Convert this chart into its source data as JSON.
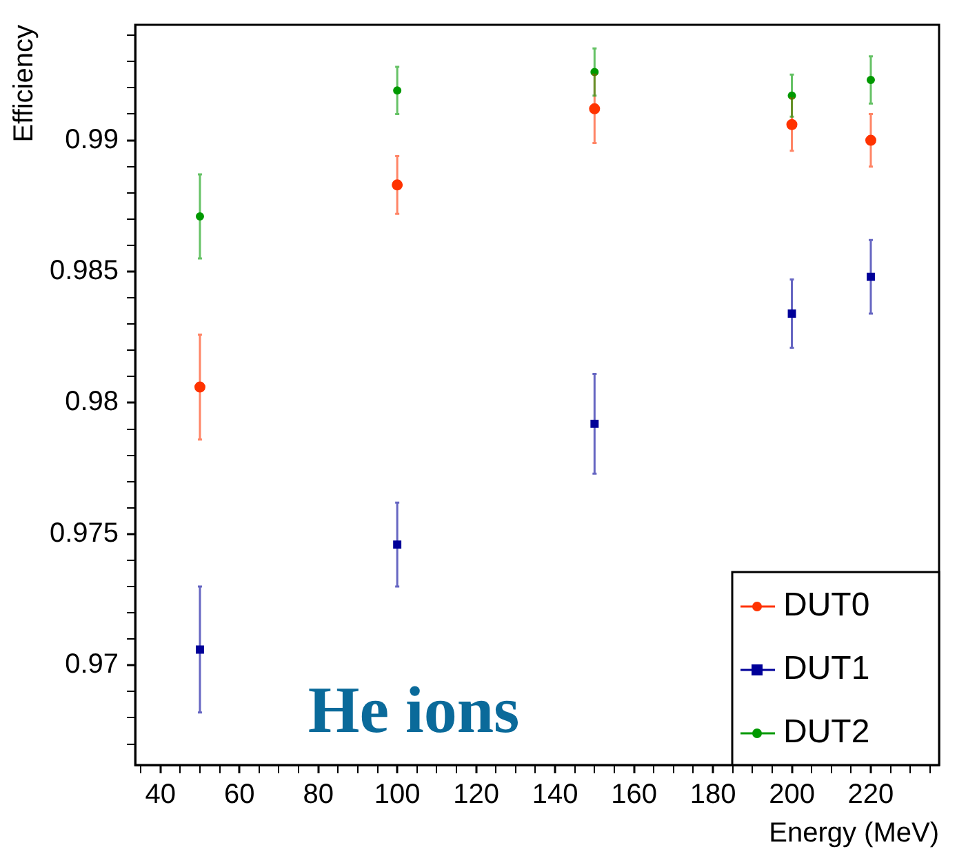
{
  "chart_data": {
    "type": "scatter",
    "xlabel": "Energy (MeV)",
    "ylabel": "Efficiency",
    "annotations": [
      "He ions"
    ],
    "x": [
      50,
      100,
      150,
      200,
      220
    ],
    "series": [
      {
        "name": "DUT0",
        "color": "#ff3300",
        "marker": "circle",
        "values": [
          0.9806,
          0.9883,
          0.9912,
          0.9906,
          0.99
        ],
        "errors": [
          0.002,
          0.0011,
          0.0013,
          0.001,
          0.001
        ]
      },
      {
        "name": "DUT1",
        "color": "#000099",
        "marker": "square",
        "values": [
          0.9706,
          0.9746,
          0.9792,
          0.9834,
          0.9848
        ],
        "errors": [
          0.0024,
          0.0016,
          0.0019,
          0.0013,
          0.0014
        ]
      },
      {
        "name": "DUT2",
        "color": "#009900",
        "marker": "circle",
        "values": [
          0.9871,
          0.9919,
          0.9926,
          0.9917,
          0.9923
        ],
        "errors": [
          0.0016,
          0.0009,
          0.0009,
          0.0008,
          0.0009
        ]
      }
    ],
    "xlim": [
      33.6,
      237.3
    ],
    "ylim": [
      0.9662,
      0.9944
    ],
    "xticks": [
      {
        "value": 35,
        "label": null
      },
      40,
      {
        "value": 45,
        "label": null
      },
      {
        "value": 50,
        "label": null
      },
      {
        "value": 55,
        "label": null
      },
      60,
      {
        "value": 65,
        "label": null
      },
      {
        "value": 70,
        "label": null
      },
      {
        "value": 75,
        "label": null
      },
      80,
      {
        "value": 85,
        "label": null
      },
      {
        "value": 90,
        "label": null
      },
      {
        "value": 95,
        "label": null
      },
      100,
      {
        "value": 105,
        "label": null
      },
      {
        "value": 110,
        "label": null
      },
      {
        "value": 115,
        "label": null
      },
      120,
      {
        "value": 125,
        "label": null
      },
      {
        "value": 130,
        "label": null
      },
      {
        "value": 135,
        "label": null
      },
      140,
      {
        "value": 145,
        "label": null
      },
      {
        "value": 150,
        "label": null
      },
      {
        "value": 155,
        "label": null
      },
      160,
      {
        "value": 165,
        "label": null
      },
      {
        "value": 170,
        "label": null
      },
      {
        "value": 175,
        "label": null
      },
      180,
      {
        "value": 185,
        "label": null
      },
      {
        "value": 190,
        "label": null
      },
      {
        "value": 195,
        "label": null
      },
      200,
      {
        "value": 205,
        "label": null
      },
      {
        "value": 210,
        "label": null
      },
      {
        "value": 215,
        "label": null
      },
      220,
      {
        "value": 225,
        "label": null
      },
      {
        "value": 230,
        "label": null
      },
      {
        "value": 235,
        "label": null
      }
    ],
    "yticks": [
      {
        "value": 0.967,
        "label": null
      },
      {
        "value": 0.968,
        "label": null
      },
      {
        "value": 0.969,
        "label": null
      },
      0.97,
      {
        "value": 0.971,
        "label": null
      },
      {
        "value": 0.972,
        "label": null
      },
      {
        "value": 0.973,
        "label": null
      },
      {
        "value": 0.974,
        "label": null
      },
      0.975,
      {
        "value": 0.976,
        "label": null
      },
      {
        "value": 0.977,
        "label": null
      },
      {
        "value": 0.978,
        "label": null
      },
      {
        "value": 0.979,
        "label": null
      },
      0.98,
      {
        "value": 0.981,
        "label": null
      },
      {
        "value": 0.982,
        "label": null
      },
      {
        "value": 0.983,
        "label": null
      },
      {
        "value": 0.984,
        "label": null
      },
      0.985,
      {
        "value": 0.986,
        "label": null
      },
      {
        "value": 0.987,
        "label": null
      },
      {
        "value": 0.988,
        "label": null
      },
      {
        "value": 0.989,
        "label": null
      },
      0.99,
      {
        "value": 0.991,
        "label": null
      },
      {
        "value": 0.992,
        "label": null
      },
      {
        "value": 0.993,
        "label": null
      },
      {
        "value": 0.994,
        "label": null
      }
    ],
    "grid": false,
    "legend": "bottom right"
  }
}
